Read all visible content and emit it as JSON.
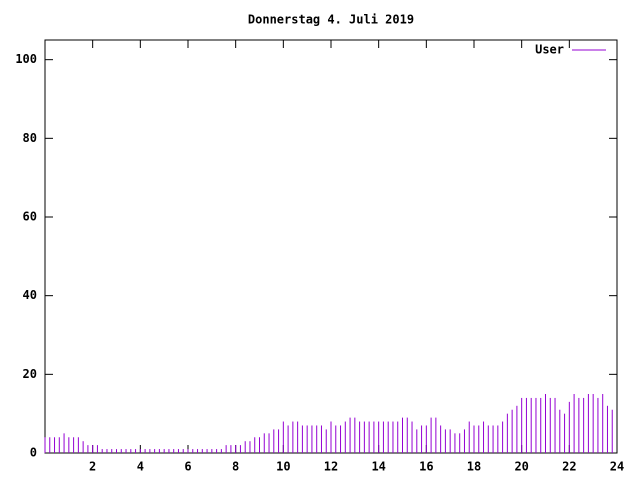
{
  "chart_data": {
    "type": "impulse",
    "title": "Donnerstag 4. Juli 2019",
    "series": [
      {
        "name": "User",
        "color": "#9400d3",
        "x": [
          0,
          0.2,
          0.4,
          0.6,
          0.8,
          1,
          1.2,
          1.4,
          1.6,
          1.8,
          2,
          2.2,
          2.4,
          2.6,
          2.8,
          3,
          3.2,
          3.4,
          3.6,
          3.8,
          4,
          4.2,
          4.4,
          4.6,
          4.8,
          5,
          5.2,
          5.4,
          5.6,
          5.8,
          6,
          6.2,
          6.4,
          6.6,
          6.8,
          7,
          7.2,
          7.4,
          7.6,
          7.8,
          8,
          8.2,
          8.4,
          8.6,
          8.8,
          9,
          9.2,
          9.4,
          9.6,
          9.8,
          10,
          10.2,
          10.4,
          10.6,
          10.8,
          11,
          11.2,
          11.4,
          11.6,
          11.8,
          12,
          12.2,
          12.4,
          12.6,
          12.8,
          13,
          13.2,
          13.4,
          13.6,
          13.8,
          14,
          14.2,
          14.4,
          14.6,
          14.8,
          15,
          15.2,
          15.4,
          15.6,
          15.8,
          16,
          16.2,
          16.4,
          16.6,
          16.8,
          17,
          17.2,
          17.4,
          17.6,
          17.8,
          18,
          18.2,
          18.4,
          18.6,
          18.8,
          19,
          19.2,
          19.4,
          19.6,
          19.8,
          20,
          20.2,
          20.4,
          20.6,
          20.8,
          21,
          21.2,
          21.4,
          21.6,
          21.8,
          22,
          22.2,
          22.4,
          22.6,
          22.8,
          23,
          23.2,
          23.4,
          23.6,
          23.8
        ],
        "values": [
          4,
          4,
          4,
          4,
          5,
          4,
          4,
          4,
          3,
          2,
          2,
          2,
          1,
          1,
          1,
          1,
          1,
          1,
          1,
          1,
          1,
          1,
          1,
          1,
          1,
          1,
          1,
          1,
          1,
          1,
          1,
          1,
          1,
          1,
          1,
          1,
          1,
          1,
          2,
          2,
          2,
          2,
          3,
          3,
          4,
          4,
          5,
          5,
          6,
          6,
          8,
          7,
          8,
          8,
          7,
          7,
          7,
          7,
          7,
          6,
          8,
          7,
          7,
          8,
          9,
          9,
          8,
          8,
          8,
          8,
          8,
          8,
          8,
          8,
          8,
          9,
          9,
          8,
          6,
          7,
          7,
          9,
          9,
          7,
          6,
          6,
          5,
          5,
          6,
          8,
          7,
          7,
          8,
          7,
          7,
          7,
          8,
          10,
          11,
          12,
          14,
          14,
          14,
          14,
          14,
          15,
          14,
          14,
          11,
          10,
          13,
          15,
          14,
          14,
          15,
          15,
          14,
          15,
          12,
          11
        ]
      }
    ],
    "xlim": [
      0,
      24
    ],
    "xticks": [
      2,
      4,
      6,
      8,
      10,
      12,
      14,
      16,
      18,
      20,
      22,
      24
    ],
    "ylim": [
      0,
      105
    ],
    "yticks": [
      0,
      20,
      40,
      60,
      80,
      100
    ],
    "legend": "top-right"
  }
}
